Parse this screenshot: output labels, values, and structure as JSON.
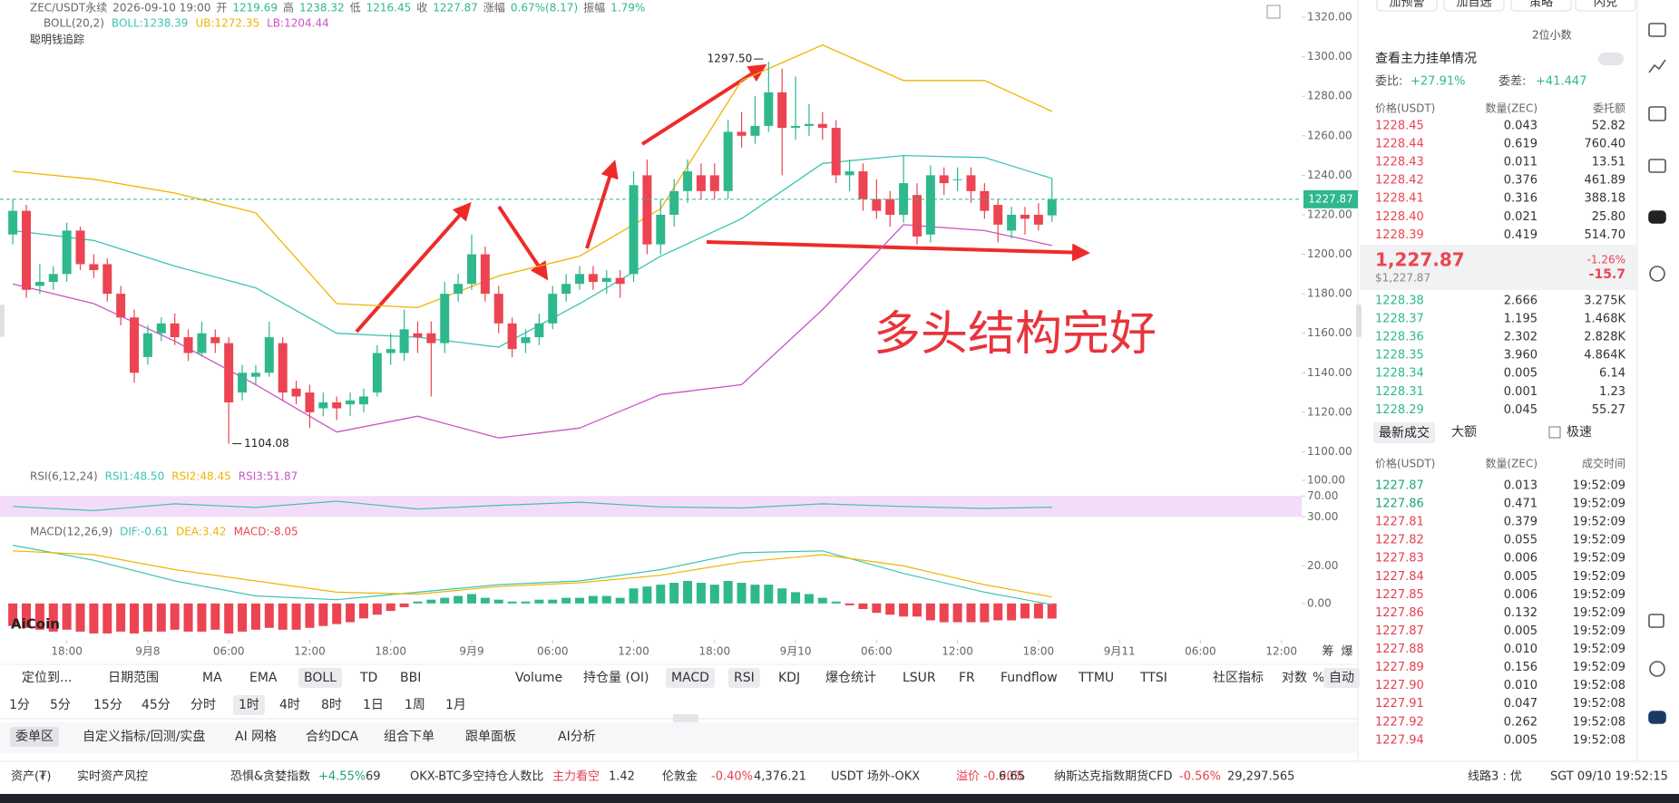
{
  "chart_data": {
    "type": "candlestick",
    "symbol_line": [
      "ZEC/USDT永续",
      "2026-09-10 19:00",
      "开",
      "1219.69",
      "高",
      "1238.32",
      "低",
      "1216.45",
      "收",
      "1227.87",
      "涨幅",
      "0.67%(8.17)",
      "振幅",
      "1.79%"
    ],
    "strategy_label": "聪明钱追踪",
    "up_color": "#2fb88d",
    "down_color": "#ec4452",
    "xlim": [
      -0.95,
      95.5
    ],
    "xticks": [
      {
        "value": 4,
        "label": "18:00"
      },
      {
        "value": 10,
        "label": "9月8"
      },
      {
        "value": 16,
        "label": "06:00"
      },
      {
        "value": 22,
        "label": "12:00"
      },
      {
        "value": 28,
        "label": "18:00"
      },
      {
        "value": 34,
        "label": "9月9"
      },
      {
        "value": 40,
        "label": "06:00"
      },
      {
        "value": 46,
        "label": "12:00"
      },
      {
        "value": 52,
        "label": "18:00"
      },
      {
        "value": 58,
        "label": "9月10"
      },
      {
        "value": 64,
        "label": "06:00"
      },
      {
        "value": 70,
        "label": "12:00"
      },
      {
        "value": 76,
        "label": "18:00"
      },
      {
        "value": 82,
        "label": "9月11"
      },
      {
        "value": 88,
        "label": "06:00"
      },
      {
        "value": 94,
        "label": "12:00"
      }
    ],
    "ylim": [
      1097,
      1326
    ],
    "yticks": [
      {
        "value": 1100,
        "label": "1100.00"
      },
      {
        "value": 1120,
        "label": "1120.00"
      },
      {
        "value": 1140,
        "label": "1140.00"
      },
      {
        "value": 1160,
        "label": "1160.00"
      },
      {
        "value": 1180,
        "label": "1180.00"
      },
      {
        "value": 1200,
        "label": "1200.00"
      },
      {
        "value": 1220,
        "label": "1220.00"
      },
      {
        "value": 1240,
        "label": "1240.00"
      },
      {
        "value": 1260,
        "label": "1260.00"
      },
      {
        "value": 1280,
        "label": "1280.00"
      },
      {
        "value": 1300,
        "label": "1300.00"
      },
      {
        "value": 1320,
        "label": "1320.00"
      }
    ],
    "current_price": {
      "value": 1227.87,
      "label": "1227.87"
    },
    "ohlc": [
      [
        1210,
        1228,
        1205,
        1222
      ],
      [
        1222,
        1225,
        1178,
        1182
      ],
      [
        1184,
        1195,
        1180,
        1186
      ],
      [
        1186,
        1194,
        1182,
        1190
      ],
      [
        1190,
        1216,
        1186,
        1212
      ],
      [
        1212,
        1214,
        1192,
        1195
      ],
      [
        1195,
        1200,
        1188,
        1192
      ],
      [
        1195,
        1198,
        1176,
        1180
      ],
      [
        1180,
        1184,
        1164,
        1168
      ],
      [
        1168,
        1172,
        1135,
        1140
      ],
      [
        1148,
        1164,
        1144,
        1160
      ],
      [
        1160,
        1168,
        1156,
        1165
      ],
      [
        1165,
        1170,
        1154,
        1158
      ],
      [
        1158,
        1162,
        1146,
        1150
      ],
      [
        1150,
        1166,
        1148,
        1160
      ],
      [
        1158,
        1162,
        1150,
        1155
      ],
      [
        1155,
        1158,
        1104.08,
        1125
      ],
      [
        1130,
        1144,
        1126,
        1140
      ],
      [
        1138,
        1144,
        1134,
        1140
      ],
      [
        1140,
        1166,
        1138,
        1158
      ],
      [
        1155,
        1158,
        1126,
        1130
      ],
      [
        1132,
        1136,
        1124,
        1128
      ],
      [
        1130,
        1134,
        1112,
        1120
      ],
      [
        1122,
        1130,
        1118,
        1125
      ],
      [
        1125,
        1128,
        1116,
        1122
      ],
      [
        1124,
        1130,
        1118,
        1126
      ],
      [
        1124,
        1132,
        1120,
        1128
      ],
      [
        1130,
        1154,
        1128,
        1150
      ],
      [
        1150,
        1160,
        1144,
        1152
      ],
      [
        1150,
        1172,
        1146,
        1162
      ],
      [
        1160,
        1166,
        1150,
        1158
      ],
      [
        1160,
        1166,
        1128,
        1155
      ],
      [
        1155,
        1186,
        1150,
        1180
      ],
      [
        1180,
        1190,
        1176,
        1185
      ],
      [
        1185,
        1210,
        1182,
        1200
      ],
      [
        1200,
        1204,
        1176,
        1180
      ],
      [
        1180,
        1184,
        1160,
        1165
      ],
      [
        1165,
        1168,
        1148,
        1152
      ],
      [
        1155,
        1162,
        1150,
        1158
      ],
      [
        1158,
        1170,
        1154,
        1165
      ],
      [
        1165,
        1184,
        1162,
        1180
      ],
      [
        1180,
        1190,
        1176,
        1185
      ],
      [
        1185,
        1194,
        1182,
        1190
      ],
      [
        1190,
        1194,
        1182,
        1186
      ],
      [
        1186,
        1192,
        1180,
        1188
      ],
      [
        1188,
        1192,
        1178,
        1185
      ],
      [
        1190,
        1242,
        1186,
        1235
      ],
      [
        1240,
        1248,
        1200,
        1205
      ],
      [
        1205,
        1228,
        1200,
        1220
      ],
      [
        1220,
        1238,
        1214,
        1232
      ],
      [
        1232,
        1248,
        1226,
        1242
      ],
      [
        1240,
        1246,
        1228,
        1232
      ],
      [
        1240,
        1246,
        1228,
        1232
      ],
      [
        1232,
        1268,
        1228,
        1262
      ],
      [
        1262,
        1272,
        1254,
        1260
      ],
      [
        1260,
        1280,
        1256,
        1265
      ],
      [
        1265,
        1297.5,
        1262,
        1282
      ],
      [
        1282,
        1294,
        1240,
        1264
      ],
      [
        1264,
        1290,
        1258,
        1265
      ],
      [
        1265,
        1276,
        1260,
        1266
      ],
      [
        1266,
        1272,
        1258,
        1264
      ],
      [
        1264,
        1268,
        1236,
        1240
      ],
      [
        1240,
        1248,
        1232,
        1242
      ],
      [
        1242,
        1246,
        1222,
        1228
      ],
      [
        1228,
        1238,
        1218,
        1222
      ],
      [
        1228,
        1232,
        1214,
        1220
      ],
      [
        1220,
        1250,
        1216,
        1236
      ],
      [
        1230,
        1236,
        1205,
        1209
      ],
      [
        1210,
        1245,
        1206,
        1240
      ],
      [
        1240,
        1244,
        1230,
        1236
      ],
      [
        1238,
        1244,
        1232,
        1238
      ],
      [
        1240,
        1244,
        1226,
        1232
      ],
      [
        1232,
        1236,
        1218,
        1222
      ],
      [
        1225,
        1228,
        1206,
        1215
      ],
      [
        1212,
        1224,
        1208,
        1220
      ],
      [
        1220,
        1224,
        1210,
        1218
      ],
      [
        1220,
        1226,
        1212,
        1215
      ],
      [
        1219.69,
        1238.32,
        1216.45,
        1227.87
      ]
    ],
    "annotations": [
      {
        "value": 1297.5,
        "label": "1297.50"
      },
      {
        "value": 1104.08,
        "label": "1104.08"
      }
    ],
    "overlay_text": "多头结构完好",
    "boll": {
      "label": "BOLL(20,2)",
      "value_texts": [
        "BOLL:1238.39",
        "UB:1272.35",
        "LB:1204.44"
      ],
      "colors": {
        "mid": "#3cc4b4",
        "upper": "#f0b400",
        "lower": "#c755c5"
      },
      "x": [
        0,
        6,
        12,
        18,
        24,
        30,
        36,
        42,
        48,
        54,
        60,
        66,
        72,
        77
      ],
      "upper": [
        1242,
        1238,
        1231,
        1221,
        1175,
        1173,
        1189,
        1199,
        1223,
        1288,
        1306,
        1288,
        1288,
        1272.35
      ],
      "mid": [
        1212,
        1207,
        1194,
        1183,
        1160,
        1158,
        1153,
        1175,
        1199,
        1218,
        1246,
        1250,
        1249,
        1238.39
      ],
      "lower": [
        1185,
        1175,
        1156,
        1134,
        1110,
        1118,
        1107,
        1112,
        1129,
        1134,
        1172,
        1215,
        1212,
        1204.44
      ]
    },
    "rsi": {
      "label": "RSI(6,12,24)",
      "value_texts": [
        "RSI1:48.50",
        "RSI2:48.45",
        "RSI3:51.87"
      ],
      "colors": [
        "#3cc4b4",
        "#f0b400",
        "#c755c5"
      ],
      "band_color": "#f3dcf7",
      "ylim": [
        20,
        100
      ],
      "yticks": [
        {
          "value": 100,
          "label": "100.00"
        },
        {
          "value": 70,
          "label": "70.00"
        },
        {
          "value": 30,
          "label": "30.00"
        }
      ],
      "x": [
        0,
        6,
        12,
        18,
        24,
        30,
        36,
        42,
        48,
        54,
        60,
        66,
        72,
        77
      ],
      "rsi1": [
        50,
        42,
        55,
        48,
        60,
        45,
        52,
        58,
        49,
        47,
        55,
        50,
        46,
        48.5
      ]
    },
    "macd": {
      "label": "MACD(12,26,9)",
      "value_texts": [
        "DIF:-0.61",
        "DEA:3.42",
        "MACD:-8.05"
      ],
      "colors": [
        "#3cc4b4",
        "#f0b400",
        "#ec4452"
      ],
      "ylim": [
        -19.4,
        33.7
      ],
      "yticks": [
        {
          "value": 20,
          "label": "20.00"
        },
        {
          "value": 0,
          "label": "0.00"
        }
      ],
      "hist": [
        -12,
        -13,
        -14,
        -15,
        -14,
        -15,
        -16,
        -16,
        -15,
        -16,
        -15,
        -15,
        -14,
        -15,
        -15,
        -14,
        -16,
        -15,
        -14,
        -13,
        -14,
        -14,
        -13,
        -12,
        -11,
        -10,
        -8,
        -6,
        -4,
        -2,
        1,
        2,
        3,
        4,
        5,
        3,
        2,
        1,
        1,
        2,
        2,
        3,
        3,
        4,
        4,
        3,
        8,
        9,
        10,
        11,
        12,
        11,
        10,
        12,
        11,
        10,
        10,
        8,
        6,
        5,
        3,
        1,
        -1,
        -3,
        -5,
        -6,
        -7,
        -7,
        -9,
        -10,
        -10,
        -10,
        -10,
        -9,
        -9,
        -8,
        -8,
        -8.05
      ],
      "x": [
        0,
        6,
        12,
        18,
        24,
        30,
        36,
        42,
        48,
        54,
        60,
        66,
        72,
        77
      ],
      "dif": [
        31,
        23,
        12,
        4,
        2,
        6,
        10,
        12,
        18,
        27,
        28,
        16,
        6,
        -0.61
      ],
      "dea": [
        28,
        26,
        18,
        12,
        6,
        5,
        9,
        11,
        15,
        22,
        26,
        20,
        10,
        3.42
      ]
    },
    "logo": "AiCoin",
    "axis_buttons": [
      "筹",
      "爆"
    ]
  },
  "toolbar": {
    "indicators": [
      "定位到...",
      "日期范围",
      "MA",
      "EMA",
      "BOLL",
      "TD",
      "BBI",
      "Volume",
      "持仓量 (OI)",
      "MACD",
      "RSI",
      "KDJ",
      "爆仓统计",
      "LSUR",
      "FR",
      "Fundflow",
      "TTMU",
      "TTSI",
      "社区指标",
      "对数",
      "%",
      "自动"
    ],
    "active_indicators": [
      4,
      9,
      10,
      21
    ],
    "periods": [
      "1分",
      "5分",
      "15分",
      "45分",
      "分时",
      "1时",
      "4时",
      "8时",
      "1日",
      "1周",
      "1月"
    ],
    "active_periods": [
      5
    ]
  },
  "tabs": [
    "委单区",
    "自定义指标/回测/实盘",
    "AI 网格",
    "合约DCA",
    "组合下单",
    "跟单面板",
    "AI分析"
  ],
  "status_bar": {
    "items": [
      "资产(₮)",
      "实时资产风控",
      "恐惧&贪婪指数",
      "+4.55%",
      "69",
      "OKX-BTC多空持仓人数比",
      "主力看空",
      "1.42",
      "伦敦金",
      "-0.40%",
      "4,376.21",
      "USDT 场外-OKX",
      "溢价 -0.90%",
      "6.65",
      "纳斯达克指数期货CFD",
      "-0.56%",
      "29,297.565",
      "线路3 : 优",
      "SGT 09/10 19:52:15"
    ],
    "colors": [
      "#333333",
      "#333333",
      "#333333",
      "#1fa37a",
      "#333333",
      "#333333",
      "#e5404f",
      "#333333",
      "#333333",
      "#e5404f",
      "#333333",
      "#333333",
      "#e5404f",
      "#333333",
      "#333333",
      "#e5404f",
      "#333333",
      "#333333",
      "#333333"
    ]
  },
  "order_book": {
    "top_buttons": [
      "加预警",
      "加自选",
      "策略",
      "闪兑"
    ],
    "precision": "2位小数",
    "link": "查看主力挂单情况",
    "stats": [
      "委比:",
      "+27.91%",
      "委差:",
      "+41.447"
    ],
    "headers": [
      "价格(USDT)",
      "数量(ZEC)",
      "委托额"
    ],
    "asks": [
      [
        "1228.45",
        "0.043",
        "52.82"
      ],
      [
        "1228.44",
        "0.619",
        "760.40"
      ],
      [
        "1228.43",
        "0.011",
        "13.51"
      ],
      [
        "1228.42",
        "0.376",
        "461.89"
      ],
      [
        "1228.41",
        "0.316",
        "388.18"
      ],
      [
        "1228.40",
        "0.021",
        "25.80"
      ],
      [
        "1228.39",
        "0.419",
        "514.70"
      ]
    ],
    "last_price": "1,227.87",
    "last_price_usd": "$1,227.87",
    "change_pct": "-1.26%",
    "change": "-15.7",
    "bids": [
      [
        "1228.38",
        "2.666",
        "3.275K"
      ],
      [
        "1228.37",
        "1.195",
        "1.468K"
      ],
      [
        "1228.36",
        "2.302",
        "2.828K"
      ],
      [
        "1228.35",
        "3.960",
        "4.864K"
      ],
      [
        "1228.34",
        "0.005",
        "6.14"
      ],
      [
        "1228.31",
        "0.001",
        "1.23"
      ],
      [
        "1228.29",
        "0.045",
        "55.27"
      ]
    ]
  },
  "trades": {
    "tabs": [
      "最新成交",
      "大额"
    ],
    "fast": "极速",
    "headers": [
      "价格(USDT)",
      "数量(ZEC)",
      "成交时间"
    ],
    "rows": [
      [
        "1227.87",
        "0.013",
        "19:52:09"
      ],
      [
        "1227.86",
        "0.471",
        "19:52:09"
      ],
      [
        "1227.81",
        "0.379",
        "19:52:09"
      ],
      [
        "1227.82",
        "0.055",
        "19:52:09"
      ],
      [
        "1227.83",
        "0.006",
        "19:52:09"
      ],
      [
        "1227.84",
        "0.005",
        "19:52:09"
      ],
      [
        "1227.85",
        "0.006",
        "19:52:09"
      ],
      [
        "1227.86",
        "0.132",
        "19:52:09"
      ],
      [
        "1227.87",
        "0.005",
        "19:52:09"
      ],
      [
        "1227.88",
        "0.010",
        "19:52:09"
      ],
      [
        "1227.89",
        "0.156",
        "19:52:09"
      ],
      [
        "1227.90",
        "0.010",
        "19:52:08"
      ],
      [
        "1227.91",
        "0.047",
        "19:52:08"
      ],
      [
        "1227.92",
        "0.262",
        "19:52:08"
      ],
      [
        "1227.94",
        "0.005",
        "19:52:08"
      ]
    ],
    "colors": [
      "#1fa37a",
      "#1fa37a",
      "#e5404f",
      "#e5404f",
      "#e5404f",
      "#e5404f",
      "#e5404f",
      "#e5404f",
      "#e5404f",
      "#e5404f",
      "#e5404f",
      "#e5404f",
      "#e5404f",
      "#e5404f",
      "#e5404f"
    ]
  }
}
